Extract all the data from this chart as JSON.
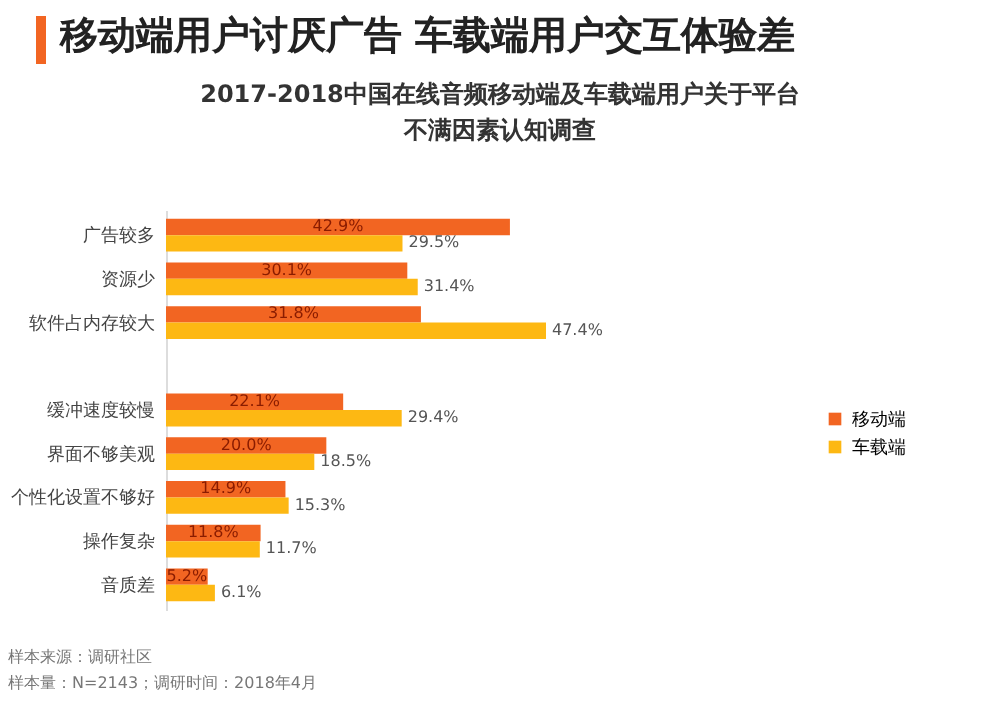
{
  "chart_data": {
    "type": "bar",
    "orientation": "horizontal",
    "title": "移动端用户讨厌广告 车载端用户交互体验差",
    "subtitle": "2017-2018中国在线音频移动端及车载端用户关于平台不满因素认知调查",
    "categories": [
      "广告较多",
      "资源少",
      "软件占内存较大",
      null,
      "缓冲速度较慢",
      "界面不够美观",
      "个性化设置不够好",
      "操作复杂",
      "音质差"
    ],
    "series": [
      {
        "name": "移动端",
        "color": "#f26522",
        "values": [
          42.9,
          30.1,
          31.8,
          null,
          22.1,
          20.0,
          14.9,
          11.8,
          5.2
        ],
        "value_labels": [
          "42.9%",
          "30.1%",
          "31.8%",
          null,
          "22.1%",
          "20.0%",
          "14.9%",
          "11.8%",
          "5.2%"
        ]
      },
      {
        "name": "车载端",
        "color": "#fdb813",
        "values": [
          29.5,
          31.4,
          47.4,
          null,
          29.4,
          18.5,
          15.3,
          11.7,
          6.1
        ],
        "value_labels": [
          "29.5%",
          "31.4%",
          "47.4%",
          null,
          "29.4%",
          "18.5%",
          "15.3%",
          "11.7%",
          "6.1%"
        ]
      }
    ],
    "legend": "right",
    "annotations": [
      "样本来源：调研社区",
      "样本量：N=2143；调研时间：2018年4月"
    ]
  }
}
